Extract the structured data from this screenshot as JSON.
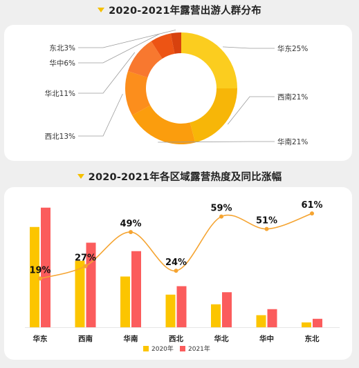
{
  "colors": {
    "accent": "#f5c000",
    "series_2020": "#fcc500",
    "series_2021": "#fb5c5c",
    "growth_line": "#f5a431"
  },
  "titles": {
    "donut": "2020-2021年露营出游人群分布",
    "bar": "2020-2021年各区域露营热度及同比涨幅"
  },
  "chart_data": [
    {
      "type": "pie",
      "title": "2020-2021年露营出游人群分布",
      "slices": [
        {
          "label": "华东",
          "value": 25,
          "text": "华东25%",
          "color": "#fbcd1f"
        },
        {
          "label": "西南",
          "value": 21,
          "text": "西南21%",
          "color": "#f7b608"
        },
        {
          "label": "华南",
          "value": 21,
          "text": "华南21%",
          "color": "#fb9d0d"
        },
        {
          "label": "西北",
          "value": 13,
          "text": "西北13%",
          "color": "#fc8e1c"
        },
        {
          "label": "华北",
          "value": 11,
          "text": "华北11%",
          "color": "#f8782f"
        },
        {
          "label": "华中",
          "value": 6,
          "text": "华中6%",
          "color": "#ed5414"
        },
        {
          "label": "东北",
          "value": 3,
          "text": "东北3%",
          "color": "#d8420e"
        }
      ]
    },
    {
      "type": "bar",
      "title": "2020-2021年各区域露营热度及同比涨幅",
      "categories": [
        "华东",
        "西南",
        "华南",
        "西北",
        "华北",
        "华中",
        "东北"
      ],
      "series": [
        {
          "name": "2020年",
          "values": [
            83,
            55,
            42,
            27,
            19,
            10,
            4
          ]
        },
        {
          "name": "2021年",
          "values": [
            99,
            70,
            63,
            34,
            29,
            15,
            7
          ]
        }
      ],
      "ylim": [
        0,
        100
      ],
      "growth": {
        "values": [
          19,
          27,
          49,
          24,
          59,
          51,
          61
        ],
        "labels": [
          "19%",
          "27%",
          "49%",
          "24%",
          "59%",
          "51%",
          "61%"
        ]
      },
      "legend": {
        "position": "bottom-center",
        "items": [
          "2020年",
          "2021年"
        ]
      }
    }
  ]
}
